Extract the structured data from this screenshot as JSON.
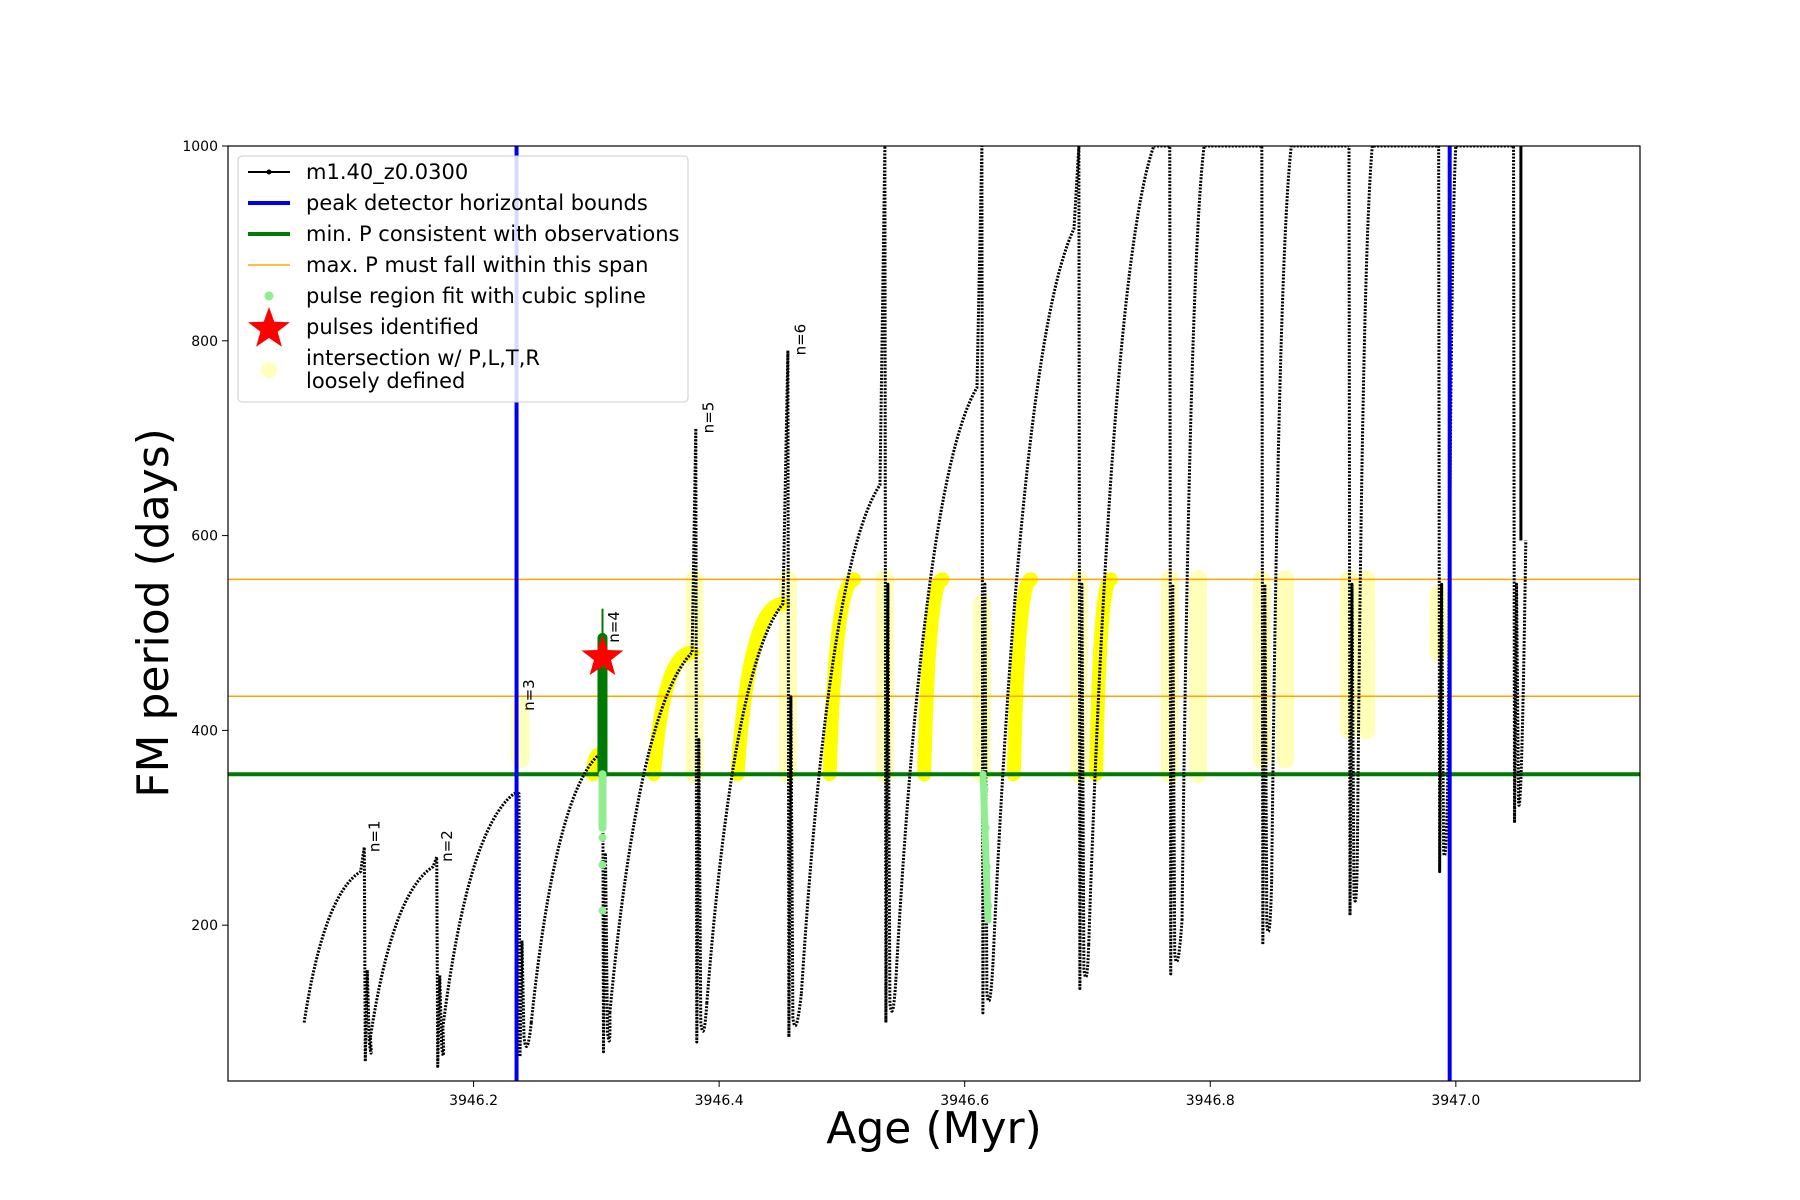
{
  "chart_data": {
    "type": "line",
    "xlabel": "Age (Myr)",
    "ylabel": "FM period (days)",
    "xlim": [
      3946.0,
      3947.15
    ],
    "ylim": [
      40,
      1000
    ],
    "x_ticks": [
      3946.2,
      3946.4,
      3946.6,
      3946.8,
      3947.0
    ],
    "x_tick_labels": [
      "3946.2",
      "3946.4",
      "3946.6",
      "3946.8",
      "3947.0"
    ],
    "y_ticks": [
      200,
      400,
      600,
      800,
      1000
    ],
    "y_tick_labels": [
      "200",
      "400",
      "600",
      "800",
      "1000"
    ],
    "grid": false,
    "legend_position": "top-left",
    "legend": [
      {
        "key": "track",
        "label": "m1.40_z0.0300",
        "color": "#000000"
      },
      {
        "key": "bounds",
        "label": "peak detector horizontal bounds",
        "color": "#0000ee"
      },
      {
        "key": "minp",
        "label": "min. P consistent with observations",
        "color": "#007a00"
      },
      {
        "key": "maxp",
        "label": "max. P must fall within this span",
        "color": "#ffa500"
      },
      {
        "key": "spline",
        "label": "pulse region fit with cubic spline",
        "color": "#90ee90"
      },
      {
        "key": "pulses",
        "label": "pulses identified",
        "color": "#ff0000"
      },
      {
        "key": "intersect",
        "label": "intersection w/ P,L,T,R\nloosely defined",
        "color": "#ffff00"
      }
    ],
    "vertical_bounds": [
      3946.235,
      3946.995
    ],
    "min_period": 355,
    "max_period_span": [
      435,
      555
    ],
    "pulse_labels": [
      {
        "text": "n=1",
        "x": 3946.112,
        "y": 275
      },
      {
        "text": "n=2",
        "x": 3946.171,
        "y": 265
      },
      {
        "text": "n=3",
        "x": 3946.238,
        "y": 420
      },
      {
        "text": "n=4",
        "x": 3946.307,
        "y": 490
      },
      {
        "text": "n=5",
        "x": 3946.384,
        "y": 705
      },
      {
        "text": "n=6",
        "x": 3946.459,
        "y": 785
      }
    ],
    "pulse_identified": {
      "x": 3946.305,
      "y": 475
    },
    "track_segments": [
      {
        "x0": 3946.062,
        "y0": 100,
        "xp": 3946.108,
        "yp": 255,
        "xe": 3946.111,
        "peak": 280,
        "min": 60,
        "next_start": 85
      },
      {
        "x0": 3946.116,
        "y0": 85,
        "xp": 3946.167,
        "yp": 260,
        "xe": 3946.17,
        "peak": 270,
        "min": 55,
        "next_start": 95
      },
      {
        "x0": 3946.175,
        "y0": 95,
        "xp": 3946.233,
        "yp": 335,
        "xe": 3946.237,
        "peak": 335,
        "min": 65,
        "next_start": 100
      },
      {
        "x0": 3946.247,
        "y0": 100,
        "xp": 3946.302,
        "yp": 375,
        "xe": 3946.305,
        "peak": 495,
        "min": 70,
        "next_start": 110
      },
      {
        "x0": 3946.311,
        "y0": 110,
        "xp": 3946.378,
        "yp": 480,
        "xe": 3946.381,
        "peak": 710,
        "min": 80,
        "next_start": 120
      },
      {
        "x0": 3946.39,
        "y0": 120,
        "xp": 3946.452,
        "yp": 530,
        "xe": 3946.456,
        "peak": 790,
        "min": 85,
        "next_start": 130
      },
      {
        "x0": 3946.467,
        "y0": 130,
        "xp": 3946.531,
        "yp": 652,
        "xe": 3946.535,
        "peak": 1000,
        "min": 100,
        "next_start": 145
      },
      {
        "x0": 3946.544,
        "y0": 145,
        "xp": 3946.61,
        "yp": 752,
        "xe": 3946.614,
        "peak": 1000,
        "min": 110,
        "next_start": 160
      },
      {
        "x0": 3946.623,
        "y0": 160,
        "xp": 3946.689,
        "yp": 915,
        "xe": 3946.693,
        "peak": 1000,
        "min": 135,
        "next_start": 180
      },
      {
        "x0": 3946.701,
        "y0": 180,
        "xp": 3946.754,
        "yp": 1000,
        "xe": 3946.767,
        "peak": 1000,
        "min": 150,
        "next_start": 205
      },
      {
        "x0": 3946.777,
        "y0": 205,
        "xp": 3946.795,
        "yp": 1000,
        "xe": 3946.842,
        "peak": 1000,
        "min": 180,
        "next_start": 245
      },
      {
        "x0": 3946.85,
        "y0": 245,
        "xp": 3946.866,
        "yp": 1000,
        "xe": 3946.913,
        "peak": 1000,
        "min": 210,
        "next_start": 300
      },
      {
        "x0": 3946.92,
        "y0": 300,
        "xp": 3946.932,
        "yp": 1000,
        "xe": 3946.986,
        "peak": 1000,
        "min": 255,
        "next_start": 400
      },
      {
        "x0": 3946.994,
        "y0": 400,
        "xp": 3947.0,
        "yp": 1000,
        "xe": 3947.047,
        "peak": 1000,
        "min": 305,
        "next_start": 595
      }
    ],
    "yellow_bands": [
      {
        "x0": 3946.297,
        "y0": 355,
        "x1": 3946.302,
        "y1": 375
      },
      {
        "x0": 3946.347,
        "y0": 355,
        "x1": 3946.378,
        "y1": 480
      },
      {
        "x0": 3946.415,
        "y0": 355,
        "x1": 3946.452,
        "y1": 530
      },
      {
        "x0": 3946.49,
        "y0": 355,
        "x1": 3946.51,
        "y1": 555
      },
      {
        "x0": 3946.567,
        "y0": 355,
        "x1": 3946.582,
        "y1": 555
      },
      {
        "x0": 3946.64,
        "y0": 355,
        "x1": 3946.654,
        "y1": 555
      },
      {
        "x0": 3946.707,
        "y0": 355,
        "x1": 3946.719,
        "y1": 555
      }
    ],
    "faint_yellow": [
      {
        "x": 3946.238,
        "y0": 370,
        "y1": 425
      },
      {
        "x": 3946.38,
        "y0": 355,
        "y1": 555
      },
      {
        "x": 3946.456,
        "y0": 355,
        "y1": 555
      },
      {
        "x": 3946.535,
        "y0": 355,
        "y1": 555
      },
      {
        "x": 3946.614,
        "y0": 355,
        "y1": 530
      },
      {
        "x": 3946.693,
        "y0": 355,
        "y1": 555
      },
      {
        "x": 3946.767,
        "y0": 355,
        "y1": 555
      },
      {
        "x": 3946.79,
        "y0": 355,
        "y1": 555
      },
      {
        "x": 3946.842,
        "y0": 370,
        "y1": 555
      },
      {
        "x": 3946.861,
        "y0": 370,
        "y1": 555
      },
      {
        "x": 3946.913,
        "y0": 400,
        "y1": 555
      },
      {
        "x": 3946.927,
        "y0": 400,
        "y1": 555
      },
      {
        "x": 3946.986,
        "y0": 480,
        "y1": 540
      }
    ],
    "green_segment": {
      "x": 3946.305,
      "y0": 355,
      "y1": 525
    },
    "spline_points": [
      {
        "x": 3946.305,
        "y": 330
      },
      {
        "x": 3946.305,
        "y": 290
      },
      {
        "x": 3946.305,
        "y": 262
      },
      {
        "x": 3946.305,
        "y": 215
      },
      {
        "x": 3946.616,
        "y": 340
      },
      {
        "x": 3946.617,
        "y": 300
      },
      {
        "x": 3946.618,
        "y": 260
      },
      {
        "x": 3946.619,
        "y": 220
      }
    ]
  }
}
